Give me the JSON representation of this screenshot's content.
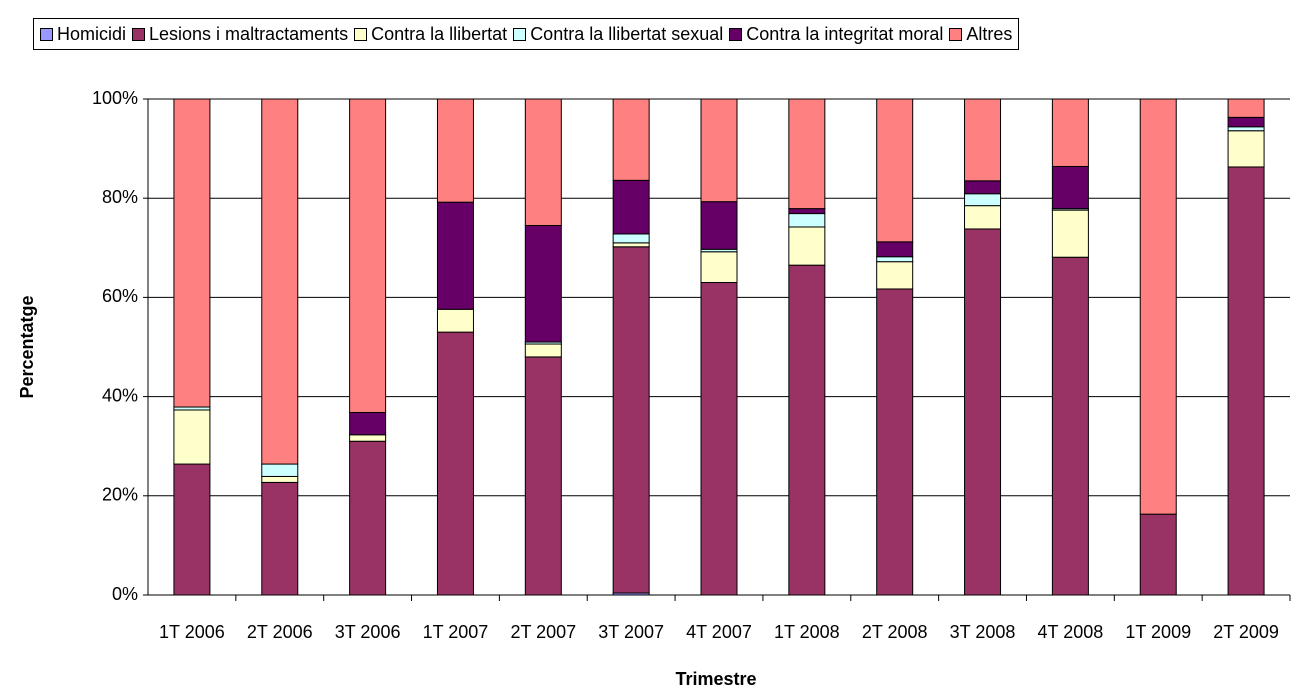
{
  "chart_data": {
    "type": "bar",
    "stacked": true,
    "x_label": "Trimestre",
    "y_label": "Percentatge",
    "categories": [
      "1T 2006",
      "2T 2006",
      "3T 2006",
      "1T 2007",
      "2T 2007",
      "3T 2007",
      "4T 2007",
      "1T 2008",
      "2T 2008",
      "3T 2008",
      "4T 2008",
      "1T 2009",
      "2T 2009"
    ],
    "series": [
      {
        "name": "Homicidi",
        "color": "#9999ff",
        "values": [
          0,
          0,
          0,
          0,
          0,
          0.4,
          0,
          0,
          0,
          0,
          0,
          0,
          0
        ]
      },
      {
        "name": "Lesions i maltractaments",
        "color": "#993366",
        "values": [
          26.4,
          22.7,
          31,
          53,
          48,
          69.8,
          63,
          66.5,
          61.7,
          73.8,
          68.1,
          16.3,
          86.3
        ]
      },
      {
        "name": "Contra la llibertat",
        "color": "#ffffcc",
        "values": [
          10.9,
          1.2,
          1.3,
          4.6,
          2.6,
          0.8,
          6.2,
          7.7,
          5.5,
          4.7,
          9.5,
          0,
          7.3
        ]
      },
      {
        "name": "Contra la llibertat sexual",
        "color": "#ccffff",
        "values": [
          0.6,
          2.5,
          0,
          0,
          0.4,
          1.8,
          0.5,
          2.7,
          1,
          2.4,
          0.3,
          0,
          0.8
        ]
      },
      {
        "name": "Contra la integritat moral",
        "color": "#660066",
        "values": [
          0,
          0,
          4.5,
          21.6,
          23.5,
          10.8,
          9.6,
          1,
          3,
          2.6,
          8.5,
          0,
          1.9
        ]
      },
      {
        "name": "Altres",
        "color": "#ff8080",
        "values": [
          62.1,
          73.6,
          63.2,
          20.8,
          25.5,
          16.4,
          20.7,
          22.1,
          28.8,
          16.5,
          13.6,
          83.7,
          3.7
        ]
      }
    ],
    "ylim": [
      0,
      100
    ],
    "yticks": [
      {
        "value": 0,
        "label": "0%"
      },
      {
        "value": 20,
        "label": "20%"
      },
      {
        "value": 40,
        "label": "40%"
      },
      {
        "value": 60,
        "label": "60%"
      },
      {
        "value": 80,
        "label": "80%"
      },
      {
        "value": 100,
        "label": "100%"
      }
    ],
    "grid": true,
    "legend": "top"
  }
}
